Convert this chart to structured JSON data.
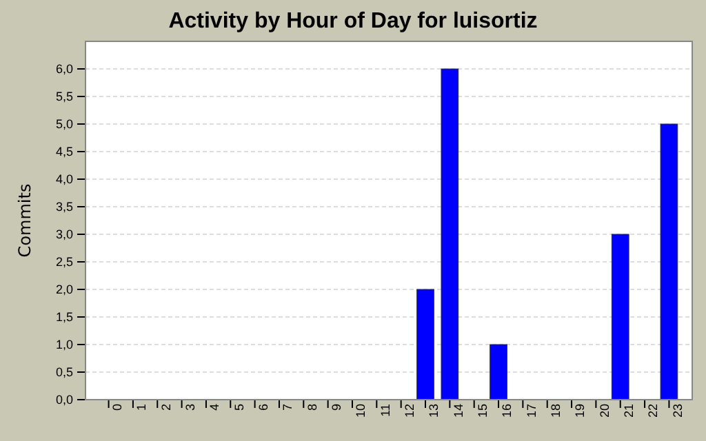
{
  "chart_data": {
    "type": "bar",
    "title": "Activity by Hour of Day for luisortiz",
    "ylabel": "Commits",
    "categories": [
      "0",
      "1",
      "2",
      "3",
      "4",
      "5",
      "6",
      "7",
      "8",
      "9",
      "10",
      "11",
      "12",
      "13",
      "14",
      "15",
      "16",
      "17",
      "18",
      "19",
      "20",
      "21",
      "22",
      "23"
    ],
    "values": [
      0,
      0,
      0,
      0,
      0,
      0,
      0,
      0,
      0,
      0,
      0,
      0,
      0,
      2,
      6,
      0,
      1,
      0,
      0,
      0,
      0,
      3,
      0,
      5
    ],
    "color": "#0000ff",
    "ylim": [
      0,
      6.5
    ],
    "yticks": [
      {
        "value": 0,
        "label": "0,0"
      },
      {
        "value": 0.5,
        "label": "0,5"
      },
      {
        "value": 1,
        "label": "1,0"
      },
      {
        "value": 1.5,
        "label": "1,5"
      },
      {
        "value": 2,
        "label": "2,0"
      },
      {
        "value": 2.5,
        "label": "2,5"
      },
      {
        "value": 3,
        "label": "3,0"
      },
      {
        "value": 3.5,
        "label": "3,5"
      },
      {
        "value": 4,
        "label": "4,0"
      },
      {
        "value": 4.5,
        "label": "4,5"
      },
      {
        "value": 5,
        "label": "5,0"
      },
      {
        "value": 5.5,
        "label": "5,5"
      },
      {
        "value": 6,
        "label": "6,0"
      }
    ],
    "grid": "y"
  }
}
